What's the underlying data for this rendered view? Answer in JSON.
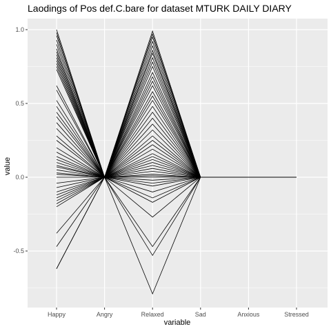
{
  "chart_data": {
    "type": "line",
    "title": "Laodings of Pos def.C.bare for dataset MTURK DAILY DIARY",
    "xlabel": "variable",
    "ylabel": "value",
    "categories": [
      "Happy",
      "Angry",
      "Relaxed",
      "Sad",
      "Anxious",
      "Stressed"
    ],
    "yticks": [
      1.0,
      0.5,
      0.0,
      -0.5
    ],
    "ytick_labels": [
      "1.0",
      "0.5",
      "0.0",
      "-0.5"
    ],
    "ylim": [
      -0.87,
      1.05
    ],
    "grid": true,
    "legend": "none",
    "line_color": "#000000",
    "panel_color": "#ebebeb",
    "grid_color": "#ffffff",
    "happy_values": [
      1.0,
      0.98,
      0.96,
      0.93,
      0.9,
      0.87,
      0.85,
      0.83,
      0.81,
      0.79,
      0.77,
      0.75,
      0.73,
      0.62,
      0.59,
      0.52,
      0.48,
      0.44,
      0.41,
      0.37,
      0.33,
      0.28,
      0.25,
      0.2,
      0.17,
      0.14,
      0.12,
      0.1,
      0.08,
      0.07,
      0.05,
      0.03,
      0.02,
      0.0,
      -0.04,
      -0.07,
      -0.1,
      -0.12,
      -0.14,
      -0.16,
      -0.18,
      -0.2,
      -0.38,
      -0.47,
      -0.62
    ],
    "relaxed_values": [
      0.99,
      0.97,
      0.95,
      0.92,
      0.89,
      0.86,
      0.84,
      0.81,
      0.78,
      0.75,
      0.71,
      0.68,
      0.65,
      0.62,
      0.58,
      0.55,
      0.52,
      0.48,
      0.44,
      0.4,
      0.36,
      0.32,
      0.28,
      0.25,
      0.22,
      0.19,
      0.16,
      0.14,
      0.12,
      0.1,
      0.08,
      0.06,
      0.04,
      0.02,
      0.01,
      0.0,
      -0.02,
      -0.04,
      -0.06,
      -0.1,
      -0.14,
      -0.17,
      -0.27,
      -0.47,
      -0.53,
      -0.79
    ]
  }
}
